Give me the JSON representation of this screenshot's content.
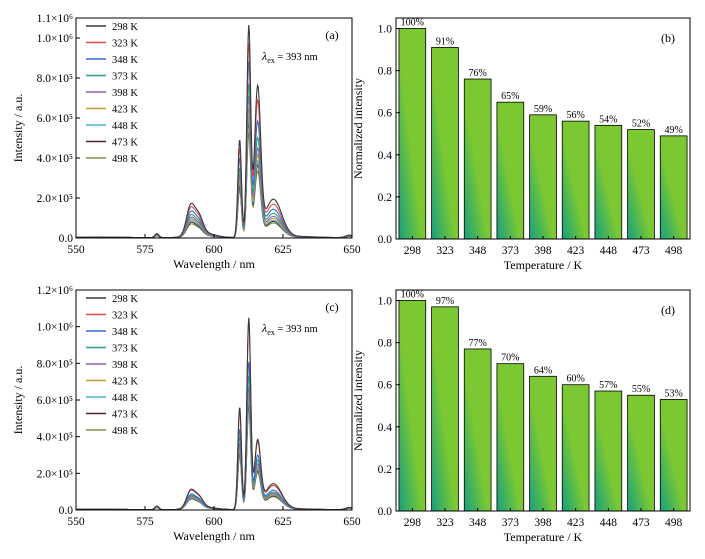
{
  "colors": {
    "series": [
      "#3a3a3a",
      "#e24a4a",
      "#2f6fd6",
      "#2aa36a",
      "#9a5fc6",
      "#c99a2e",
      "#3fb8cc",
      "#4a2838",
      "#8a8f3a"
    ],
    "bar_light": "#7cc832",
    "bar_dark": "#16a07e"
  },
  "chart_data": [
    {
      "panel": "(a)",
      "type": "line",
      "xlabel": "Wavelength / nm",
      "ylabel": "Intensity / a.u.",
      "xlim": [
        550,
        650
      ],
      "ylim": [
        0,
        1100000
      ],
      "xticks": [
        550,
        575,
        600,
        625,
        650
      ],
      "yticks": [
        {
          "value": 0,
          "label": "0.0"
        },
        {
          "value": 200000,
          "label": "2.0×10⁵"
        },
        {
          "value": 400000,
          "label": "4.0×10⁵"
        },
        {
          "value": 600000,
          "label": "6.0×10⁵"
        },
        {
          "value": 800000,
          "label": "8.0×10⁵"
        },
        {
          "value": 1000000,
          "label": "1.0×10⁶"
        },
        {
          "value": 1100000,
          "label": "1.1×10⁶"
        }
      ],
      "annotation": {
        "base": "λ",
        "sub": "ex",
        "rest": " = 393 nm"
      },
      "legend_position": "top-left",
      "series": [
        {
          "name": "298 K",
          "peaks": {
            "p579": 20000,
            "p592": 200000,
            "p609": 490000,
            "p612": 1050000,
            "p615": 730000,
            "p622": 190000
          }
        },
        {
          "name": "323 K",
          "peaks": {
            "p579": 18000,
            "p592": 180000,
            "p609": 450000,
            "p612": 960000,
            "p615": 660000,
            "p622": 165000
          }
        },
        {
          "name": "348 K",
          "peaks": {
            "p579": 16000,
            "p592": 155000,
            "p609": 400000,
            "p612": 870000,
            "p615": 560000,
            "p622": 140000
          }
        },
        {
          "name": "373 K",
          "peaks": {
            "p579": 14000,
            "p592": 135000,
            "p609": 350000,
            "p612": 760000,
            "p615": 480000,
            "p622": 120000
          }
        },
        {
          "name": "398 K",
          "peaks": {
            "p579": 13000,
            "p592": 120000,
            "p609": 320000,
            "p612": 700000,
            "p615": 430000,
            "p622": 105000
          }
        },
        {
          "name": "423 K",
          "peaks": {
            "p579": 12000,
            "p592": 110000,
            "p609": 300000,
            "p612": 640000,
            "p615": 400000,
            "p622": 95000
          }
        },
        {
          "name": "448 K",
          "peaks": {
            "p579": 11000,
            "p592": 100000,
            "p609": 280000,
            "p612": 600000,
            "p615": 370000,
            "p622": 85000
          }
        },
        {
          "name": "473 K",
          "peaks": {
            "p579": 10000,
            "p592": 90000,
            "p609": 260000,
            "p612": 570000,
            "p615": 350000,
            "p622": 80000
          }
        },
        {
          "name": "498 K",
          "peaks": {
            "p579": 9000,
            "p592": 80000,
            "p609": 240000,
            "p612": 520000,
            "p615": 320000,
            "p622": 72000
          }
        }
      ]
    },
    {
      "panel": "(b)",
      "type": "bar",
      "xlabel": "Temperature / K",
      "ylabel": "Normalized intensity",
      "ylim": [
        0,
        1.05
      ],
      "yticks": [
        "0.0",
        "0.2",
        "0.4",
        "0.6",
        "0.8",
        "1.0"
      ],
      "categories": [
        "298",
        "323",
        "348",
        "373",
        "398",
        "423",
        "448",
        "473",
        "498"
      ],
      "values": [
        1.0,
        0.91,
        0.76,
        0.65,
        0.59,
        0.56,
        0.54,
        0.52,
        0.49
      ],
      "labels": [
        "100%",
        "91%",
        "76%",
        "65%",
        "59%",
        "56%",
        "54%",
        "52%",
        "49%"
      ]
    },
    {
      "panel": "(c)",
      "type": "line",
      "xlabel": "Wavelength / nm",
      "ylabel": "Intensity / a.u.",
      "xlim": [
        550,
        650
      ],
      "ylim": [
        0,
        1200000
      ],
      "xticks": [
        550,
        575,
        600,
        625,
        650
      ],
      "yticks": [
        {
          "value": 0,
          "label": "0.0"
        },
        {
          "value": 200000,
          "label": "2.0×10⁵"
        },
        {
          "value": 400000,
          "label": "4.0×10⁵"
        },
        {
          "value": 600000,
          "label": "6.0×10⁵"
        },
        {
          "value": 800000,
          "label": "8.0×10⁵"
        },
        {
          "value": 1000000,
          "label": "1.0×10⁶"
        },
        {
          "value": 1200000,
          "label": "1.2×10⁶"
        }
      ],
      "annotation": {
        "base": "λ",
        "sub": "ex",
        "rest": " = 393 nm"
      },
      "legend_position": "top-left",
      "series": [
        {
          "name": "298 K",
          "peaks": {
            "p579": 20000,
            "p592": 130000,
            "p609": 560000,
            "p612": 1040000,
            "p615": 360000,
            "p622": 140000
          }
        },
        {
          "name": "323 K",
          "peaks": {
            "p579": 19000,
            "p592": 125000,
            "p609": 545000,
            "p612": 1020000,
            "p615": 350000,
            "p622": 130000
          }
        },
        {
          "name": "348 K",
          "peaks": {
            "p579": 16000,
            "p592": 100000,
            "p609": 440000,
            "p612": 800000,
            "p615": 280000,
            "p622": 105000
          }
        },
        {
          "name": "373 K",
          "peaks": {
            "p579": 15000,
            "p592": 92000,
            "p609": 400000,
            "p612": 725000,
            "p615": 255000,
            "p622": 95000
          }
        },
        {
          "name": "398 K",
          "peaks": {
            "p579": 14000,
            "p592": 85000,
            "p609": 365000,
            "p612": 665000,
            "p615": 235000,
            "p622": 88000
          }
        },
        {
          "name": "423 K",
          "peaks": {
            "p579": 13000,
            "p592": 80000,
            "p609": 345000,
            "p612": 625000,
            "p615": 220000,
            "p622": 82000
          }
        },
        {
          "name": "448 K",
          "peaks": {
            "p579": 12000,
            "p592": 75000,
            "p609": 325000,
            "p612": 595000,
            "p615": 210000,
            "p622": 78000
          }
        },
        {
          "name": "473 K",
          "peaks": {
            "p579": 12000,
            "p592": 72000,
            "p609": 315000,
            "p612": 570000,
            "p615": 200000,
            "p622": 74000
          }
        },
        {
          "name": "498 K",
          "peaks": {
            "p579": 11000,
            "p592": 68000,
            "p609": 300000,
            "p612": 550000,
            "p615": 192000,
            "p622": 70000
          }
        }
      ]
    },
    {
      "panel": "(d)",
      "type": "bar",
      "xlabel": "Temperature / K",
      "ylabel": "Normalized intensity",
      "ylim": [
        0,
        1.05
      ],
      "yticks": [
        "0.0",
        "0.2",
        "0.4",
        "0.6",
        "0.8",
        "1.0"
      ],
      "categories": [
        "298",
        "323",
        "348",
        "373",
        "398",
        "423",
        "448",
        "473",
        "498"
      ],
      "values": [
        1.0,
        0.97,
        0.77,
        0.7,
        0.64,
        0.6,
        0.57,
        0.55,
        0.53
      ],
      "labels": [
        "100%",
        "97%",
        "77%",
        "70%",
        "64%",
        "60%",
        "57%",
        "55%",
        "53%"
      ]
    }
  ]
}
